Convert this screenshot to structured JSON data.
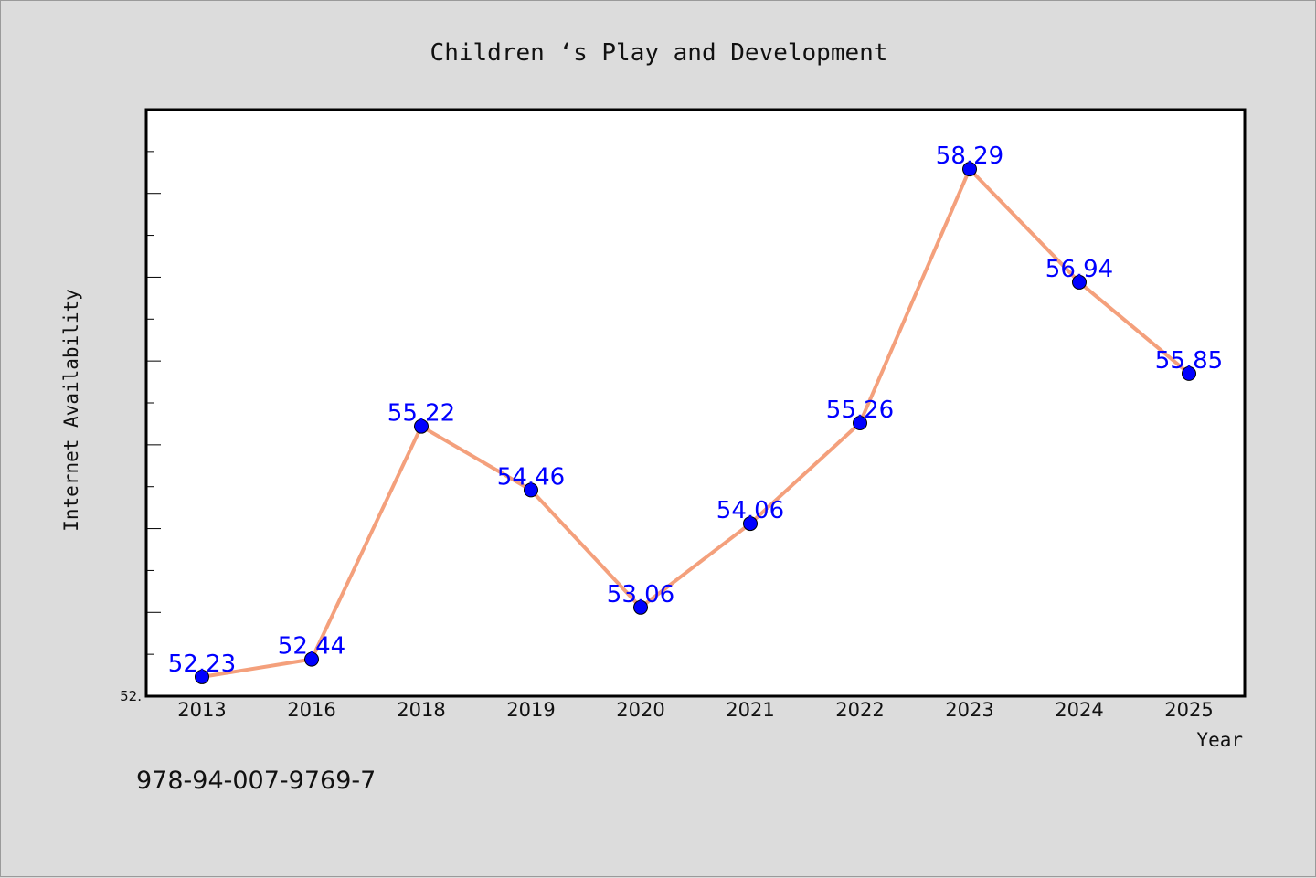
{
  "chart_data": {
    "type": "line",
    "title": "Children ‘s Play and Development",
    "xlabel": "Year",
    "ylabel": "Internet Availability",
    "categories": [
      "2013",
      "2016",
      "2018",
      "2019",
      "2020",
      "2021",
      "2022",
      "2023",
      "2024",
      "2025"
    ],
    "values": [
      52.23,
      52.44,
      55.22,
      54.46,
      53.06,
      54.06,
      55.26,
      58.29,
      56.94,
      55.85
    ],
    "data_labels": [
      "52.23",
      "52.44",
      "55.22",
      "54.46",
      "53.06",
      "54.06",
      "55.26",
      "58.29",
      "56.94",
      "55.85"
    ],
    "ylim": [
      52.0,
      59.0
    ],
    "y_tick_label_min": "52.",
    "grid": false,
    "legend": "none",
    "line_color": "#f4a07c",
    "marker_color": "#0000ff",
    "label_color": "#0000ff"
  },
  "footer": {
    "isbn": "978-94-007-9769-7"
  }
}
